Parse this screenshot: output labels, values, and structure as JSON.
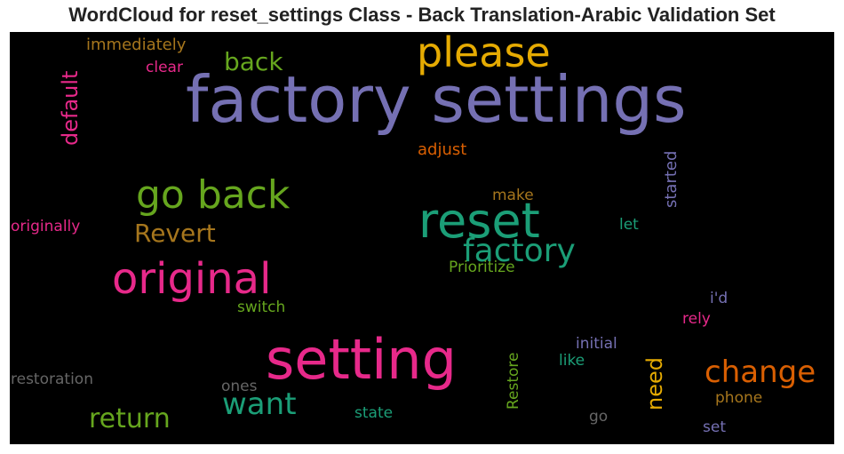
{
  "title": "WordCloud for reset_settings Class - Back Translation-Arabic Validation Set",
  "colors": {
    "purple": "#7570b3",
    "orange": "#e6ab02",
    "green": "#66a61e",
    "teal": "#1b9e77",
    "pink": "#e7298a",
    "rust": "#d95f02",
    "brown": "#a6761d",
    "gray": "#666666",
    "background": "#000000"
  },
  "words": [
    {
      "text": "factory settings",
      "color": "#7570b3"
    },
    {
      "text": "please",
      "color": "#e6ab02"
    },
    {
      "text": "back",
      "color": "#66a61e"
    },
    {
      "text": "immediately",
      "color": "#a6761d"
    },
    {
      "text": "clear",
      "color": "#e7298a"
    },
    {
      "text": "default",
      "color": "#e7298a"
    },
    {
      "text": "adjust",
      "color": "#d95f02"
    },
    {
      "text": "started",
      "color": "#7570b3"
    },
    {
      "text": "go back",
      "color": "#66a61e"
    },
    {
      "text": "reset",
      "color": "#1b9e77"
    },
    {
      "text": "make",
      "color": "#a6761d"
    },
    {
      "text": "let",
      "color": "#1b9e77"
    },
    {
      "text": "Revert",
      "color": "#a6761d"
    },
    {
      "text": "originally",
      "color": "#e7298a"
    },
    {
      "text": "factory",
      "color": "#1b9e77"
    },
    {
      "text": "original",
      "color": "#e7298a"
    },
    {
      "text": "Prioritize",
      "color": "#66a61e"
    },
    {
      "text": "i'd",
      "color": "#7570b3"
    },
    {
      "text": "switch",
      "color": "#66a61e"
    },
    {
      "text": "rely",
      "color": "#e7298a"
    },
    {
      "text": "initial",
      "color": "#7570b3"
    },
    {
      "text": "setting",
      "color": "#e7298a"
    },
    {
      "text": "Restore",
      "color": "#66a61e"
    },
    {
      "text": "like",
      "color": "#1b9e77"
    },
    {
      "text": "need",
      "color": "#e6ab02"
    },
    {
      "text": "change",
      "color": "#d95f02"
    },
    {
      "text": "restoration",
      "color": "#666666"
    },
    {
      "text": "ones",
      "color": "#666666"
    },
    {
      "text": "want",
      "color": "#1b9e77"
    },
    {
      "text": "phone",
      "color": "#a6761d"
    },
    {
      "text": "state",
      "color": "#1b9e77"
    },
    {
      "text": "return",
      "color": "#66a61e"
    },
    {
      "text": "go",
      "color": "#666666"
    },
    {
      "text": "set",
      "color": "#7570b3"
    }
  ]
}
